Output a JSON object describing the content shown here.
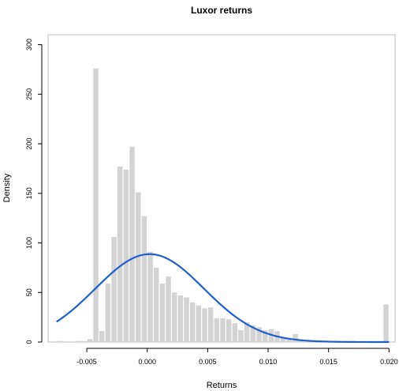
{
  "chart_data": {
    "type": "bar",
    "title": "Luxor returns",
    "xlabel": "Returns",
    "ylabel": "Density",
    "xlim": [
      -0.0082,
      0.0205
    ],
    "ylim": [
      0,
      310
    ],
    "x_ticks": [
      -0.005,
      0.0,
      0.005,
      0.01,
      0.015,
      0.02
    ],
    "x_tick_labels": [
      "-0.005",
      "0.000",
      "0.005",
      "0.010",
      "0.015",
      "0.020"
    ],
    "y_ticks": [
      0,
      50,
      100,
      150,
      200,
      250,
      300
    ],
    "y_tick_labels": [
      "0",
      "50",
      "100",
      "150",
      "200",
      "250",
      "300"
    ],
    "grid": false,
    "bin_width": 0.0005,
    "bin_starts": [
      -0.0075,
      -0.007,
      -0.0065,
      -0.006,
      -0.0055,
      -0.005,
      -0.0045,
      -0.004,
      -0.0035,
      -0.003,
      -0.0025,
      -0.002,
      -0.0015,
      -0.001,
      -0.0005,
      0.0,
      0.0005,
      0.001,
      0.0015,
      0.002,
      0.0025,
      0.003,
      0.0035,
      0.004,
      0.0045,
      0.005,
      0.0055,
      0.006,
      0.0065,
      0.007,
      0.0075,
      0.008,
      0.0085,
      0.009,
      0.0095,
      0.01,
      0.0105,
      0.011,
      0.0115,
      0.012,
      0.0125,
      0.013,
      0.0135,
      0.014,
      0.0145,
      0.015,
      0.0155,
      0.016,
      0.0165,
      0.017,
      0.0175,
      0.018,
      0.0185,
      0.019,
      0.0195
    ],
    "densities": [
      1,
      0,
      0,
      1,
      1,
      3,
      276,
      11,
      59,
      106,
      177,
      174,
      197,
      151,
      127,
      91,
      75,
      59,
      66,
      50,
      47,
      45,
      40,
      37,
      34,
      35,
      24,
      24,
      23,
      19,
      12,
      20,
      17,
      15,
      12,
      13,
      11,
      4,
      4,
      8,
      2,
      2,
      0,
      0,
      0,
      0,
      0,
      0,
      0,
      0,
      0,
      0,
      0,
      0,
      38
    ],
    "bar_color": "#d3d3d3",
    "curve": {
      "type": "normal-density",
      "mean": 0.0002,
      "sd": 0.0045,
      "color": "#1f5fcc"
    }
  }
}
